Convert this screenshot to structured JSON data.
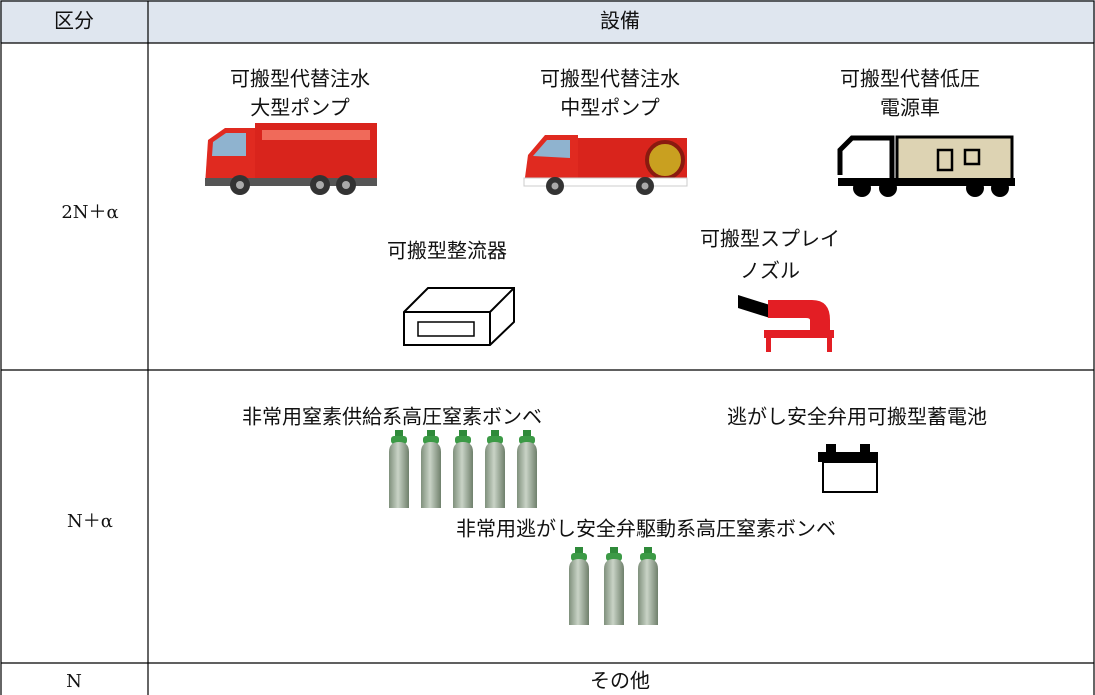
{
  "table": {
    "header": [
      "区分",
      "設備"
    ],
    "rows": [
      {
        "category": "2N＋α",
        "items": [
          {
            "label": [
              "可搬型代替注水",
              "大型ポンプ"
            ]
          },
          {
            "label": [
              "可搬型代替注水",
              "中型ポンプ"
            ]
          },
          {
            "label": [
              "可搬型代替低圧",
              "電源車"
            ]
          },
          {
            "label": [
              "可搬型整流器"
            ]
          },
          {
            "label": [
              "可搬型スプレイ",
              "ノズル"
            ]
          }
        ]
      },
      {
        "category": "N＋α",
        "items": [
          {
            "label": [
              "非常用窒素供給系高圧窒素ボンベ"
            ]
          },
          {
            "label": [
              "逃がし安全弁用可搬型蓄電池"
            ]
          },
          {
            "label": [
              "非常用逃がし安全弁駆動系高圧窒素ボンベ"
            ]
          }
        ]
      },
      {
        "category": "N",
        "items": [
          {
            "label": [
              "その他"
            ]
          }
        ]
      }
    ]
  }
}
